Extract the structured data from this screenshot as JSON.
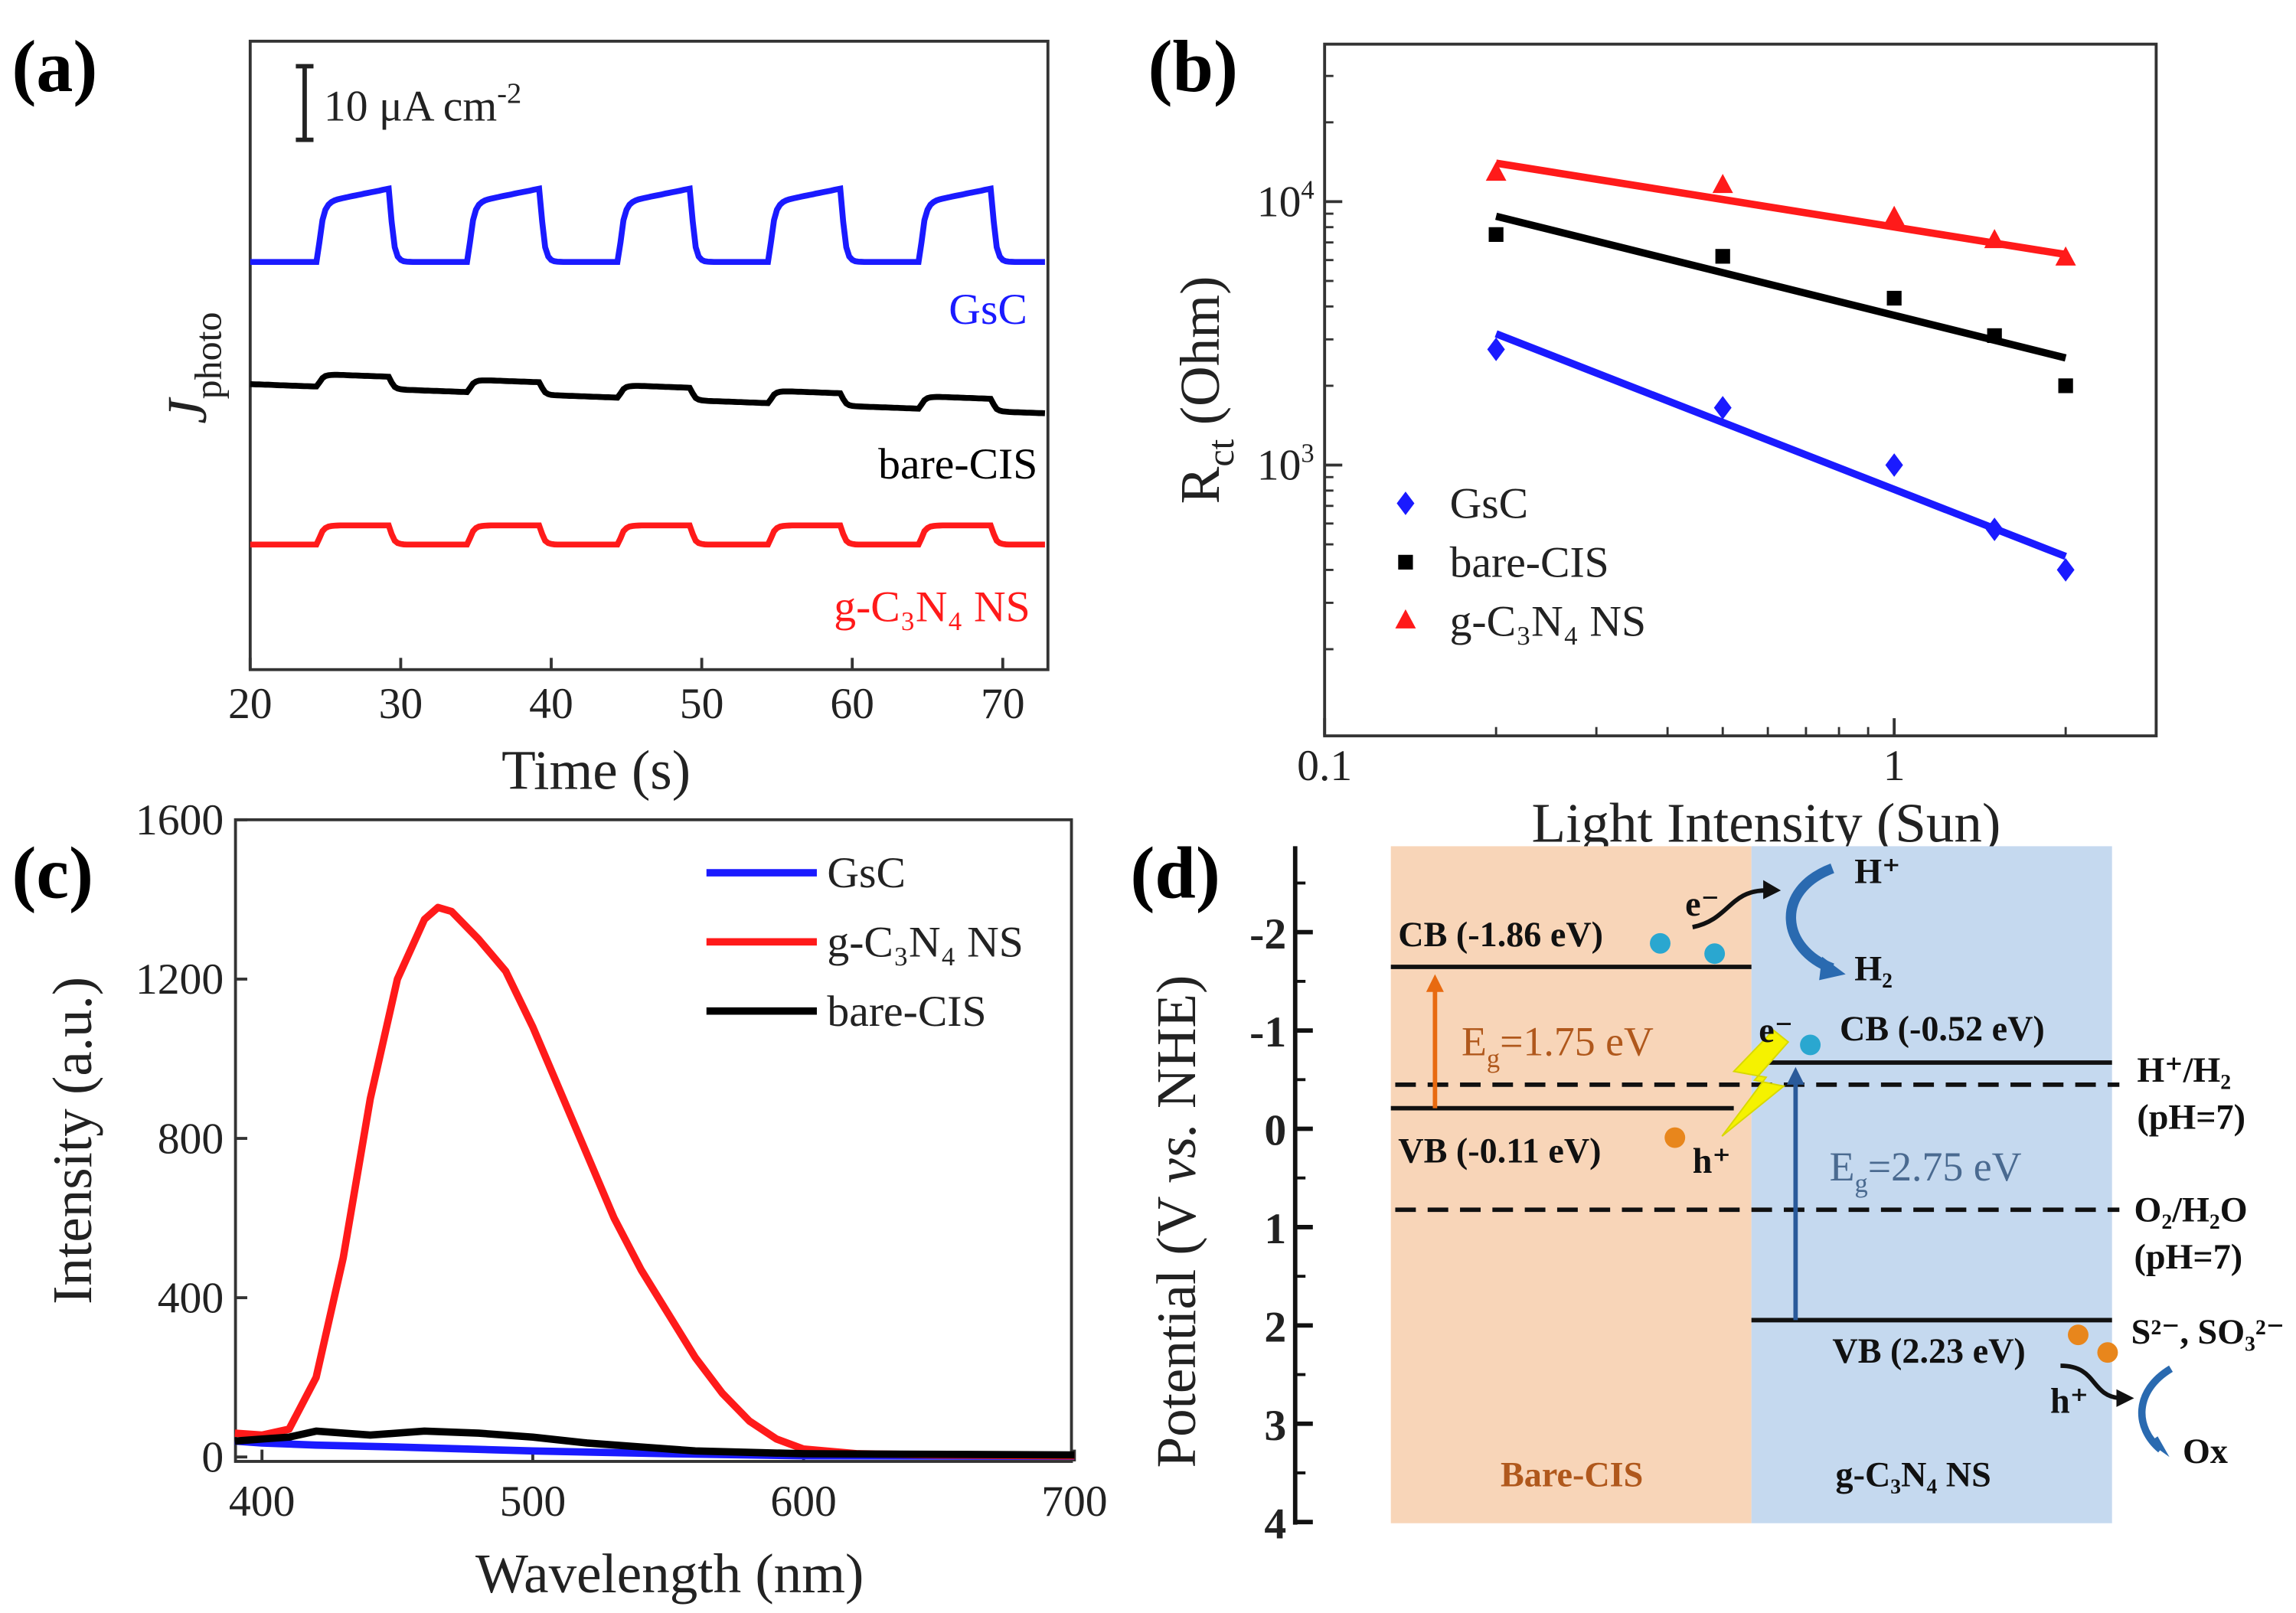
{
  "panel_labels": [
    "(a)",
    "(b)",
    "(c)",
    "(d)"
  ],
  "chart_data": [
    {
      "type": "line",
      "panel": "a",
      "xlabel": "Time (s)",
      "ylabel": {
        "main": "J",
        "sub": "photo"
      },
      "xlim": [
        20,
        73
      ],
      "xticks": [
        20,
        30,
        40,
        50,
        60,
        70
      ],
      "scale_bar": {
        "value": 10,
        "label": "10 μA cm",
        "exp": "-2"
      },
      "light_on_intervals": [
        [
          24.5,
          29.3
        ],
        [
          34.5,
          39.3
        ],
        [
          44.5,
          49.3
        ],
        [
          54.5,
          59.3
        ],
        [
          64.5,
          69.3
        ]
      ],
      "series": [
        {
          "name": "GsC",
          "color": "#1a1aff",
          "baseline": 55.4,
          "amplitude": 10,
          "drift": 0,
          "rise_growth": 0.2
        },
        {
          "name": "bare-CIS",
          "color": "#000000",
          "baseline": 38.8,
          "amplitude": 1.7,
          "drift": -0.075,
          "rise_growth": 0
        },
        {
          "name": "g-C₃N₄ NS",
          "color": "#ff1a1a",
          "baseline": 17,
          "amplitude": 2.6,
          "drift": 0,
          "rise_growth": 0
        }
      ]
    },
    {
      "type": "scatter",
      "panel": "b",
      "xlabel": "Light Intensity (Sun)",
      "ylabel": {
        "main": "R",
        "sub": "ct",
        "rest": " (Ohm)"
      },
      "xscale": "log",
      "yscale": "log",
      "xlim": [
        0.1,
        2.9
      ],
      "ylim": [
        100,
        40000
      ],
      "xticks": [
        {
          "v": 0.1,
          "label": "0.1"
        },
        {
          "v": 1,
          "label": "1"
        }
      ],
      "yticks": [
        {
          "v": 1000,
          "label": "10",
          "exp": "3"
        },
        {
          "v": 10000,
          "label": "10",
          "exp": "4"
        }
      ],
      "legend": "bottom-left",
      "x": [
        0.2,
        0.5,
        1,
        1.5,
        2
      ],
      "series": [
        {
          "name": "GsC",
          "color": "#1a1aff",
          "marker": "diamond",
          "values": [
            2750,
            1650,
            1000,
            570,
            400
          ],
          "fit": [
            3150,
            450
          ]
        },
        {
          "name": "bare-CIS",
          "color": "#000000",
          "marker": "square",
          "values": [
            7500,
            6200,
            4300,
            3100,
            2000
          ],
          "fit": [
            8800,
            2550
          ]
        },
        {
          "name": "g-C₃N₄ NS",
          "color": "#ff1a1a",
          "marker": "triangle",
          "values": [
            12800,
            11500,
            8700,
            7100,
            6100
          ],
          "fit": [
            14000,
            6300
          ]
        }
      ]
    },
    {
      "type": "line",
      "panel": "c",
      "xlabel": "Wavelength (nm)",
      "ylabel": "Intensity (a.u.)",
      "xlim": [
        390,
        700
      ],
      "ylim": [
        0,
        1600
      ],
      "xticks": [
        400,
        500,
        600,
        700
      ],
      "yticks": [
        0,
        400,
        800,
        1200,
        1600
      ],
      "legend": "top-right",
      "series": [
        {
          "name": "GsC",
          "color": "#1a1aff",
          "x": [
            390,
            400,
            420,
            450,
            500,
            550,
            600,
            700
          ],
          "y": [
            40,
            35,
            30,
            25,
            15,
            8,
            3,
            2
          ]
        },
        {
          "name": "g-C₃N₄ NS",
          "color": "#ff1a1a",
          "x": [
            390,
            400,
            410,
            420,
            430,
            440,
            450,
            460,
            465,
            470,
            480,
            490,
            500,
            510,
            520,
            530,
            540,
            550,
            560,
            570,
            580,
            590,
            600,
            620,
            650,
            700
          ],
          "y": [
            60,
            55,
            70,
            200,
            500,
            900,
            1200,
            1350,
            1380,
            1370,
            1300,
            1220,
            1080,
            920,
            760,
            600,
            470,
            360,
            250,
            160,
            90,
            45,
            20,
            8,
            5,
            3
          ]
        },
        {
          "name": "bare-CIS",
          "color": "#000000",
          "x": [
            390,
            400,
            410,
            420,
            440,
            460,
            480,
            500,
            520,
            540,
            560,
            600,
            700
          ],
          "y": [
            40,
            45,
            50,
            65,
            55,
            65,
            60,
            50,
            35,
            25,
            15,
            8,
            5
          ]
        }
      ]
    },
    {
      "type": "diagram",
      "panel": "d",
      "ylabel": "Potential (V vs. NHE)",
      "ylabel_parts": {
        "a": "Potential (V ",
        "b": "vs.",
        "c": " NHE)"
      },
      "yticks": [
        -2,
        -1,
        0,
        1,
        2,
        3,
        4
      ],
      "materials": [
        {
          "name": "Bare-CIS",
          "color": "#f8d5b8",
          "label_color": "#b0581c",
          "cb_label": "CB (-1.86 eV)",
          "vb_label": "VB (-0.11 eV)",
          "eg": {
            "sym": "E",
            "sub": "g",
            "val": "=1.75 eV"
          },
          "arrow_color": "#e86a10"
        },
        {
          "name": "g-C₃N₄ NS",
          "color": "#c5d9ef",
          "label_color": "#222222",
          "cb_label": "CB (-0.52 eV)",
          "vb_label": "VB (2.23 eV)",
          "eg": {
            "sym": "E",
            "sub": "g",
            "val": "=2.75 eV"
          },
          "arrow_color": "#2a5a9a"
        }
      ],
      "references": [
        {
          "name": "H⁺/H₂",
          "cond": "(pH=7)"
        },
        {
          "name": "O₂/H₂O",
          "cond": "(pH=7)"
        }
      ],
      "species": {
        "electron": "e⁻",
        "hole": "h⁺",
        "proton": "H⁺",
        "hydrogen": "H₂",
        "sacrificial": "S²⁻, SO₃²⁻",
        "oxidized": "Ox"
      }
    }
  ]
}
